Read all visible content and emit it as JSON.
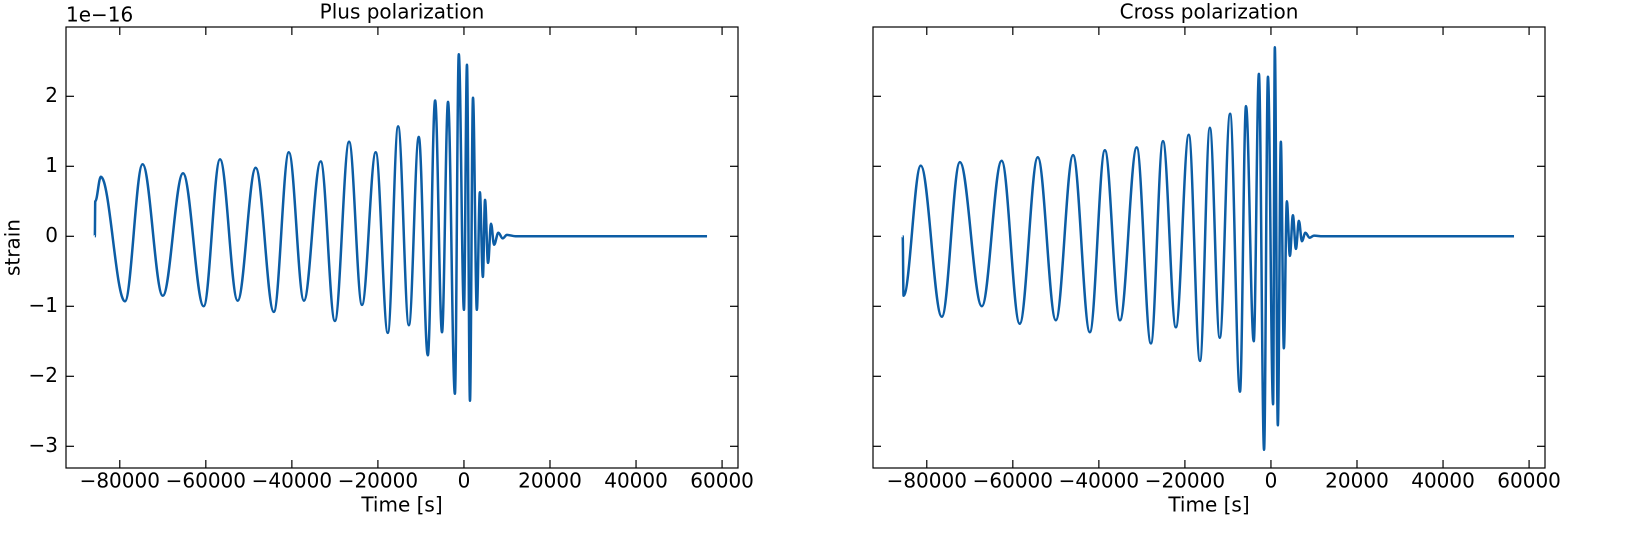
{
  "chart_data": [
    {
      "type": "line",
      "title": "Plus polarization",
      "xlabel": "Time [s]",
      "ylabel": "strain",
      "offset_text": "1e−16",
      "color": "#0c5da5",
      "x": [
        -85800,
        -85700,
        -84400,
        -78800,
        -74700,
        -70000,
        -65300,
        -60500,
        -56700,
        -52600,
        -48400,
        -44200,
        -40700,
        -37200,
        -33300,
        -30000,
        -26700,
        -23700,
        -20500,
        -17700,
        -15300,
        -12800,
        -10500,
        -8400,
        -6700,
        -5100,
        -3700,
        -2100,
        -1200,
        0,
        700,
        1400,
        2100,
        3000,
        3700,
        4400,
        4900,
        5600,
        6300,
        7000,
        8000,
        9000,
        10000,
        12000,
        56500
      ],
      "values": [
        0,
        0.5,
        0.85,
        -0.93,
        1.03,
        -0.85,
        0.9,
        -1.0,
        1.1,
        -0.92,
        0.98,
        -1.08,
        1.2,
        -0.92,
        1.07,
        -1.21,
        1.35,
        -0.98,
        1.2,
        -1.38,
        1.57,
        -1.27,
        1.42,
        -1.7,
        1.94,
        -1.37,
        1.92,
        -2.25,
        2.6,
        -1.05,
        2.45,
        -2.35,
        1.98,
        -1.05,
        0.63,
        -0.58,
        0.52,
        -0.38,
        0.18,
        -0.12,
        0.05,
        -0.03,
        0.02,
        0,
        0
      ],
      "xlim": [
        -92500,
        63700
      ],
      "xticks": [
        {
          "value": -80000,
          "label": "−80000"
        },
        {
          "value": -60000,
          "label": "−60000"
        },
        {
          "value": -40000,
          "label": "−40000"
        },
        {
          "value": -20000,
          "label": "−20000"
        },
        0,
        20000,
        40000,
        60000
      ],
      "ylim": [
        -3.31,
        2.99
      ],
      "yticks": [
        {
          "value": -3,
          "label": "−3"
        },
        {
          "value": -2,
          "label": "−2"
        },
        {
          "value": -1,
          "label": "−1"
        },
        0,
        1,
        2
      ],
      "ytick_labels": true
    },
    {
      "type": "line",
      "title": "Cross polarization",
      "xlabel": "Time [s]",
      "color": "#0c5da5",
      "x": [
        -85600,
        -85400,
        -81400,
        -76500,
        -72300,
        -67200,
        -62600,
        -58400,
        -54200,
        -50000,
        -46000,
        -42100,
        -38600,
        -35100,
        -31200,
        -27900,
        -25100,
        -22100,
        -19100,
        -16500,
        -14200,
        -11900,
        -9500,
        -7200,
        -5800,
        -4000,
        -2800,
        -1600,
        -700,
        500,
        900,
        1600,
        2300,
        3000,
        3700,
        4400,
        5100,
        5800,
        6500,
        7200,
        8000,
        9000,
        10000,
        12000,
        56500
      ],
      "values": [
        0,
        -0.85,
        1.01,
        -1.15,
        1.06,
        -1.0,
        1.08,
        -1.25,
        1.13,
        -1.2,
        1.16,
        -1.37,
        1.23,
        -1.2,
        1.27,
        -1.53,
        1.36,
        -1.3,
        1.45,
        -1.78,
        1.55,
        -1.45,
        1.75,
        -2.22,
        1.86,
        -1.5,
        2.32,
        -3.05,
        2.28,
        -2.4,
        2.7,
        -2.7,
        1.35,
        -1.6,
        0.5,
        -0.28,
        0.3,
        -0.18,
        0.22,
        -0.07,
        0.05,
        -0.02,
        0.01,
        0,
        0
      ],
      "xlim": [
        -92500,
        63700
      ],
      "xticks": [
        {
          "value": -80000,
          "label": "−80000"
        },
        {
          "value": -60000,
          "label": "−60000"
        },
        {
          "value": -40000,
          "label": "−40000"
        },
        {
          "value": -20000,
          "label": "−20000"
        },
        0,
        20000,
        40000,
        60000
      ],
      "ylim": [
        -3.31,
        2.99
      ],
      "yticks": [
        -3,
        -2,
        -1,
        0,
        1,
        2
      ],
      "ytick_labels": false
    }
  ]
}
